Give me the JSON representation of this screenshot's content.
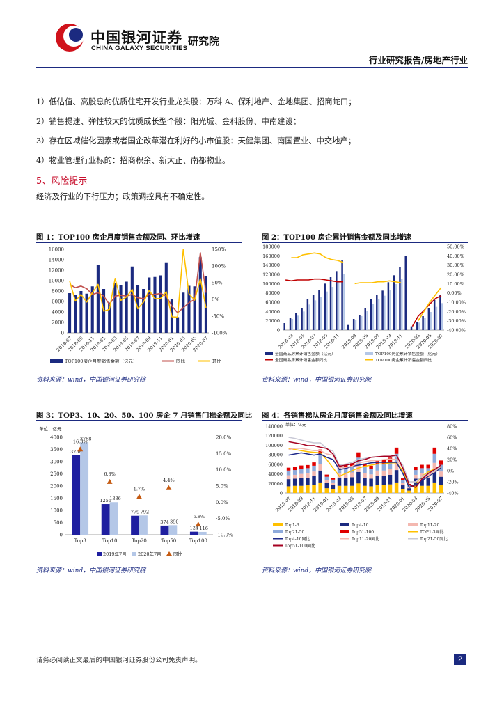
{
  "header": {
    "logo_cn": "中国银河证券",
    "logo_en": "CHINA GALAXY SECURITIES",
    "institute": "研究院",
    "report_type": "行业研究报告/房地产行业"
  },
  "body": {
    "paragraphs": [
      "1）低估值、高股息的优质住宅开发行业龙头股：万科 A、保利地产、金地集团、招商蛇口；",
      "2）销售提速、弹性较大的优质成长型个股：阳光城、金科股份、中南建设；",
      "3）存在区域催化因素或者国企改革潜在利好的小市值股：天健集团、南国置业、中交地产；",
      "4）物业管理行业标的：招商积余、新大正、南都物业。"
    ],
    "section_heading": "5、风险提示",
    "risk_text": "经济及行业的下行压力；政策调控具有不确定性。"
  },
  "figures": {
    "fig1": {
      "title": "图 1：TOP100 房企月度销售金额及同、环比增速",
      "source": "资料来源：wind，中国银河证券研究院"
    },
    "fig2": {
      "title": "图 2：TOP100 房企累计销售金额及同比增速",
      "source": "资料来源：wind，中国银河证券研究院"
    },
    "fig3": {
      "title": "图 3：TOP3、10、20、50、100 房企 7 月销售门槛金额及同比",
      "source": "资料来源：wind，中国银河证券研究院"
    },
    "fig4": {
      "title": "图 4：各销售梯队房企月度销售金额及同比增速",
      "source": "资料来源：wind，中国银河证券研究院"
    }
  },
  "footer": {
    "disclaimer": "请务必阅读正文最后的中国银河证券股份公司免责声明。",
    "page_number": "2"
  },
  "colors": {
    "navy": "#1b2a80",
    "red": "#c8102e",
    "light_blue": "#b4c7e7",
    "gold": "#ffc000",
    "rose": "#c0504d"
  },
  "chart_data": [
    {
      "type": "bar",
      "title": "TOP100 房企月度销售金额及同、环比增速",
      "ylim": [
        0,
        16000
      ],
      "y_ticks": [
        "16000",
        "14000",
        "12000",
        "10000",
        "8000",
        "6000",
        "4000",
        "2000",
        "0"
      ],
      "y2lim": [
        -100,
        150
      ],
      "y2_ticks": [
        "150%",
        "100%",
        "50%",
        "0%",
        "-50%",
        "-100%"
      ],
      "x_tick_labels": [
        "2018-07",
        "2018-09",
        "2018-11",
        "2019-01",
        "2019-03",
        "2019-05",
        "2019-07",
        "2019-09",
        "2019-11",
        "2020-01",
        "2020-03",
        "2020-05",
        "2020-07"
      ],
      "categories": [
        "2018-07",
        "2018-08",
        "2018-09",
        "2018-10",
        "2018-11",
        "2018-12",
        "2019-01",
        "2019-02",
        "2019-03",
        "2019-04",
        "2019-05",
        "2019-06",
        "2019-07",
        "2019-08",
        "2019-09",
        "2019-10",
        "2019-11",
        "2019-12",
        "2020-01",
        "2020-02",
        "2020-03",
        "2020-04",
        "2020-05",
        "2020-06",
        "2020-07"
      ],
      "series": [
        {
          "name": "TOP100房企月度销售金额（亿元）",
          "kind": "bar",
          "axis": "left",
          "values": [
            7600,
            7300,
            8000,
            7500,
            8900,
            13000,
            8400,
            5800,
            9500,
            9200,
            9800,
            12700,
            9100,
            8400,
            10600,
            10700,
            11000,
            13500,
            6400,
            3000,
            7700,
            9000,
            8900,
            14500,
            10900
          ]
        },
        {
          "name": "同比",
          "kind": "line",
          "axis": "right",
          "values": [
            45,
            35,
            40,
            32,
            15,
            20,
            10,
            -15,
            10,
            12,
            10,
            15,
            5,
            2,
            15,
            15,
            18,
            10,
            -20,
            -40,
            -25,
            -10,
            0,
            140,
            20
          ]
        },
        {
          "name": "环比",
          "kind": "line",
          "axis": "right",
          "values": [
            55,
            -5,
            15,
            -8,
            20,
            45,
            -35,
            -30,
            63,
            -3,
            7,
            30,
            -28,
            -8,
            27,
            2,
            3,
            23,
            -52,
            -53,
            150,
            17,
            -2,
            62,
            -25
          ]
        }
      ]
    },
    {
      "type": "bar",
      "title": "TOP100 房企累计销售金额及同比增速",
      "ylim": [
        0,
        180000
      ],
      "y_ticks": [
        "180000",
        "160000",
        "140000",
        "120000",
        "100000",
        "80000",
        "60000",
        "40000",
        "20000",
        "0"
      ],
      "y2lim": [
        -40,
        50
      ],
      "y2_ticks": [
        "50.00%",
        "40.00%",
        "30.00%",
        "20.00%",
        "10.00%",
        "0.00%",
        "-10.00%",
        "-20.00%",
        "-30.00%",
        "-40.00%"
      ],
      "x_tick_labels": [
        "2018-03",
        "2018-05",
        "2018-07",
        "2018-09",
        "2018-11",
        "2019-03",
        "2019-05",
        "2019-07",
        "2019-09",
        "2019-11",
        "2020-03",
        "2020-05",
        "2020-07"
      ],
      "categories": [
        "2018-02",
        "2018-03",
        "2018-04",
        "2018-05",
        "2018-06",
        "2018-07",
        "2018-08",
        "2018-09",
        "2018-10",
        "2018-11",
        "2018-12",
        "2019-02",
        "2019-03",
        "2019-04",
        "2019-05",
        "2019-06",
        "2019-07",
        "2019-08",
        "2019-09",
        "2019-10",
        "2019-11",
        "2019-12",
        "2020-02",
        "2020-03",
        "2020-04",
        "2020-05",
        "2020-06",
        "2020-07"
      ],
      "series": [
        {
          "name": "全国商品房累计销售金额（亿元）",
          "kind": "bar",
          "axis": "left",
          "values": [
            15000,
            26000,
            36000,
            48000,
            67000,
            76000,
            86000,
            100000,
            114000,
            127000,
            150000,
            11000,
            24000,
            33000,
            47000,
            67000,
            76000,
            85000,
            103000,
            118000,
            135000,
            160000,
            8000,
            18000,
            30000,
            48000,
            65000,
            76000
          ]
        },
        {
          "name": "TOP100房企累计销售金额（亿元）",
          "kind": "bar",
          "axis": "left",
          "values": [
            null,
            24000,
            31000,
            40000,
            55000,
            64000,
            72000,
            83000,
            93000,
            105000,
            120000,
            null,
            22000,
            30000,
            41000,
            56000,
            66000,
            74000,
            86000,
            99000,
            110000,
            null,
            null,
            16000,
            26000,
            39000,
            50000,
            58000
          ]
        },
        {
          "name": "全国商品房累计销售金额同比",
          "kind": "line",
          "axis": "right",
          "values": [
            14,
            13,
            14,
            14,
            14,
            15,
            15,
            14,
            13,
            12,
            12,
            null,
            null,
            null,
            null,
            null,
            null,
            null,
            null,
            null,
            null,
            null,
            -36,
            -25,
            -19,
            -12,
            -6,
            -3
          ]
        },
        {
          "name": "TOP100房企累计销售金额同比",
          "kind": "line",
          "axis": "right",
          "values": [
            null,
            38,
            38,
            41,
            42,
            43,
            42,
            38,
            36,
            35,
            33,
            null,
            10,
            11,
            11,
            11,
            12,
            12,
            13,
            12,
            11,
            null,
            null,
            -30,
            -20,
            -10,
            -2,
            6
          ]
        }
      ]
    },
    {
      "type": "bar",
      "title": "TOP3、10、20、50、100 房企 7 月销售门槛金额及同比",
      "unit_label": "单位：亿元",
      "ylim": [
        0,
        4000
      ],
      "y_ticks": [
        "4000",
        "3500",
        "3000",
        "2500",
        "2000",
        "1500",
        "1000",
        "500",
        "0"
      ],
      "y2lim": [
        -10,
        20
      ],
      "y2_ticks": [
        "20.0%",
        "15.0%",
        "10.0%",
        "5.0%",
        "0.0%",
        "-5.0%",
        "-10.0%"
      ],
      "categories": [
        "Top3",
        "Top10",
        "Top20",
        "Top50",
        "Top100"
      ],
      "series": [
        {
          "name": "2019年7月",
          "kind": "bar",
          "values": [
            3258,
            1256,
            779,
            374,
            124
          ],
          "labels": [
            "3258",
            "1256",
            "779",
            "374",
            "124"
          ]
        },
        {
          "name": "2020年7月",
          "kind": "bar",
          "values": [
            3788,
            1336,
            792,
            390,
            116
          ],
          "labels": [
            "3788",
            "1336",
            "792",
            "390",
            "116"
          ]
        },
        {
          "name": "同比",
          "kind": "marker",
          "values": [
            16.3,
            6.3,
            1.7,
            4.4,
            -6.8
          ],
          "labels": [
            "16.3%",
            "6.3%",
            "1.7%",
            "4.4%",
            "-6.8%"
          ]
        }
      ]
    },
    {
      "type": "bar",
      "title": "各销售梯队房企月度销售金额及同比增速",
      "unit_label": "单位：亿元",
      "ylim": [
        0,
        140000
      ],
      "y_ticks": [
        "140000",
        "120000",
        "100000",
        "80000",
        "60000",
        "40000",
        "20000",
        "0"
      ],
      "y2lim": [
        -40,
        80
      ],
      "y2_ticks": [
        "80%",
        "60%",
        "40%",
        "20%",
        "0%",
        "-20%",
        "-40%"
      ],
      "x_tick_labels": [
        "2018-07",
        "2018-09",
        "2018-11",
        "2019-01",
        "2019-03",
        "2019-05",
        "2019-07",
        "2019-09",
        "2019-11",
        "2020-01",
        "2020-03",
        "2020-05",
        "2020-07"
      ],
      "categories": [
        "2018-07",
        "2018-08",
        "2018-09",
        "2018-10",
        "2018-11",
        "2018-12",
        "2019-01",
        "2019-02",
        "2019-03",
        "2019-04",
        "2019-05",
        "2019-06",
        "2019-07",
        "2019-08",
        "2019-09",
        "2019-10",
        "2019-11",
        "2019-12",
        "2020-01",
        "2020-02",
        "2020-03",
        "2020-04",
        "2020-05",
        "2020-06",
        "2020-07"
      ],
      "series": [
        {
          "name": "Top1-3",
          "kind": "bar",
          "values": [
            14000,
            15000,
            15000,
            16000,
            17000,
            22000,
            10000,
            8000,
            15000,
            15000,
            15000,
            20000,
            15000,
            14000,
            17000,
            17000,
            18000,
            22000,
            8000,
            5000,
            15000,
            15000,
            15000,
            22000,
            16000
          ]
        },
        {
          "name": "Top4-10",
          "kind": "bar",
          "values": [
            15000,
            15000,
            16000,
            16000,
            18000,
            25000,
            11000,
            9000,
            17000,
            17000,
            18000,
            24000,
            17000,
            16000,
            19000,
            19000,
            20000,
            26000,
            8000,
            5000,
            15000,
            17000,
            17000,
            26000,
            18000
          ]
        },
        {
          "name": "Top11-20",
          "kind": "bar",
          "values": [
            8000,
            8000,
            9000,
            9000,
            10000,
            14000,
            6000,
            5000,
            9000,
            9000,
            10000,
            13000,
            10000,
            9000,
            11000,
            11000,
            12000,
            15000,
            5000,
            3000,
            8000,
            9000,
            9000,
            15000,
            11000
          ]
        },
        {
          "name": "Top21-50",
          "kind": "bar",
          "values": [
            10000,
            10000,
            11000,
            11000,
            12000,
            18000,
            7000,
            6000,
            11000,
            11000,
            12000,
            17000,
            12000,
            11000,
            13000,
            14000,
            15000,
            19000,
            6000,
            4000,
            10000,
            11000,
            11000,
            19000,
            14000
          ]
        },
        {
          "name": "Top51-100",
          "kind": "bar",
          "values": [
            6000,
            6000,
            6500,
            6500,
            7000,
            12000,
            4500,
            3500,
            7000,
            7000,
            7500,
            11000,
            7500,
            7000,
            8000,
            8500,
            9000,
            13000,
            3500,
            2000,
            6000,
            7000,
            7000,
            13000,
            9000
          ]
        },
        {
          "name": "TOP1-3同比",
          "kind": "line",
          "values": [
            40,
            38,
            36,
            34,
            33,
            32,
            20,
            5,
            -10,
            -5,
            0,
            5,
            8,
            10,
            12,
            12,
            14,
            14,
            0,
            -30,
            -25,
            -10,
            -2,
            3,
            6
          ]
        },
        {
          "name": "Top4-10同比",
          "kind": "line",
          "values": [
            28,
            30,
            32,
            30,
            28,
            30,
            24,
            20,
            2,
            4,
            8,
            10,
            12,
            14,
            15,
            15,
            15,
            15,
            -5,
            -30,
            -25,
            -18,
            -10,
            -3,
            5
          ]
        },
        {
          "name": "Top11-20同比",
          "kind": "line",
          "values": [
            38,
            40,
            40,
            38,
            36,
            36,
            30,
            28,
            5,
            6,
            8,
            14,
            16,
            18,
            18,
            20,
            21,
            20,
            5,
            -20,
            -20,
            -15,
            -8,
            -2,
            8
          ]
        },
        {
          "name": "Top21-50同比",
          "kind": "line",
          "values": [
            60,
            58,
            55,
            52,
            50,
            50,
            40,
            35,
            10,
            12,
            15,
            20,
            22,
            24,
            25,
            25,
            26,
            25,
            10,
            -20,
            -20,
            -10,
            -5,
            0,
            8
          ]
        },
        {
          "name": "Top51-100同比",
          "kind": "line",
          "values": [
            52,
            50,
            48,
            45,
            45,
            42,
            40,
            30,
            8,
            10,
            12,
            18,
            20,
            24,
            25,
            26,
            26,
            28,
            5,
            -25,
            -30,
            -15,
            -5,
            2,
            10
          ]
        }
      ]
    }
  ]
}
